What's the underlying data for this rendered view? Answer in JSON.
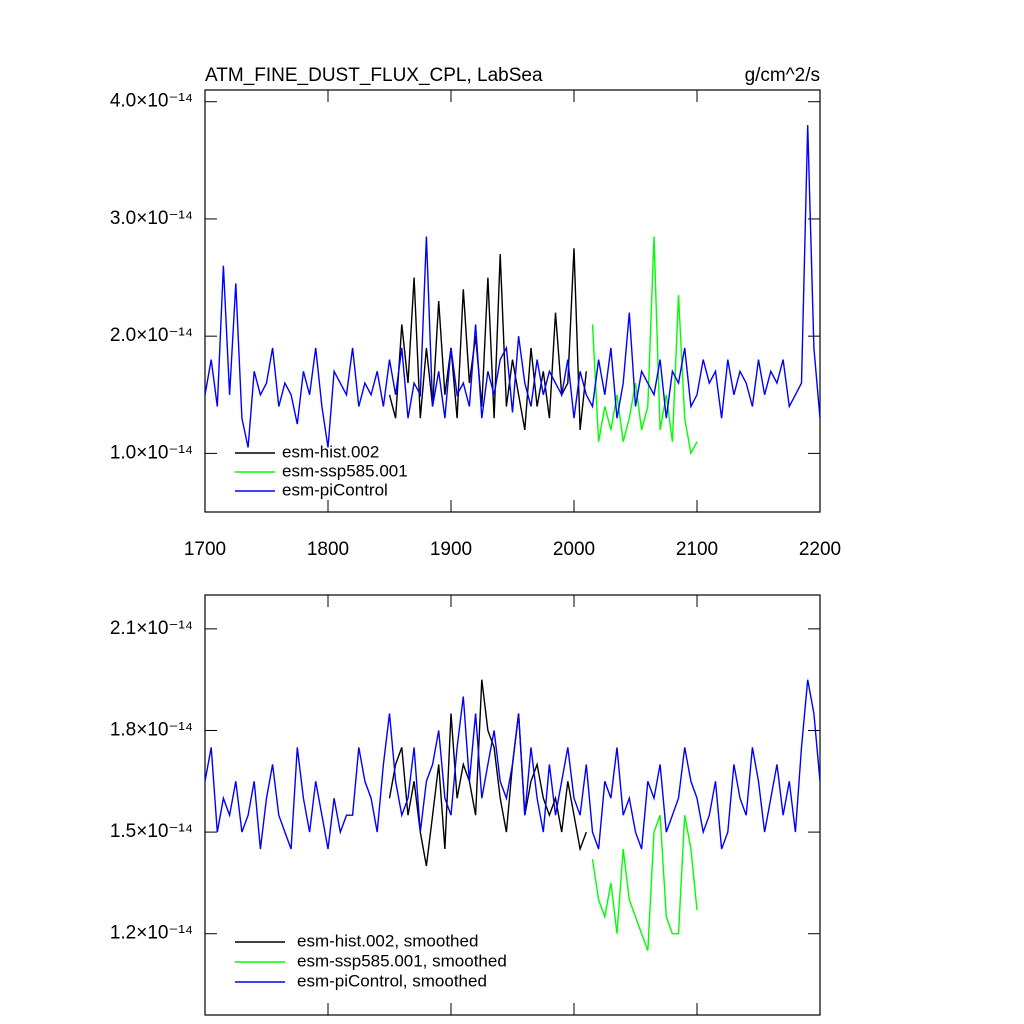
{
  "chart_data": [
    {
      "type": "line",
      "title": "ATM_FINE_DUST_FLUX_CPL, LabSea",
      "units": "g/cm^2/s",
      "xlim": [
        1700,
        2200
      ],
      "xticks": [
        1700,
        1800,
        1900,
        2000,
        2100,
        2200
      ],
      "show_xtick_labels": true,
      "ylim": [
        5e-15,
        4.1e-14
      ],
      "yticks": [
        {
          "value": 1e-14,
          "label": "1.0×10⁻¹⁴"
        },
        {
          "value": 2e-14,
          "label": "2.0×10⁻¹⁴"
        },
        {
          "value": 3e-14,
          "label": "3.0×10⁻¹⁴"
        },
        {
          "value": 4e-14,
          "label": "4.0×10⁻¹⁴"
        }
      ],
      "legend": "lower left",
      "series": [
        {
          "name": "esm-hist.002",
          "color": "#000000",
          "x": [
            1850,
            1855,
            1860,
            1865,
            1870,
            1875,
            1880,
            1885,
            1890,
            1895,
            1900,
            1905,
            1910,
            1915,
            1920,
            1925,
            1930,
            1935,
            1940,
            1945,
            1950,
            1955,
            1960,
            1965,
            1970,
            1975,
            1980,
            1985,
            1990,
            1995,
            2000,
            2005,
            2010
          ],
          "values": [
            1.5e-14,
            1.3e-14,
            2.1e-14,
            1.6e-14,
            2.5e-14,
            1.3e-14,
            1.9e-14,
            1.4e-14,
            2.3e-14,
            1.5e-14,
            1.9e-14,
            1.3e-14,
            2.4e-14,
            1.6e-14,
            2e-14,
            1.4e-14,
            2.5e-14,
            1.3e-14,
            2.7e-14,
            1.4e-14,
            1.8e-14,
            1.5e-14,
            1.2e-14,
            1.9e-14,
            1.4e-14,
            1.7e-14,
            1.3e-14,
            2.2e-14,
            1.5e-14,
            1.6e-14,
            2.75e-14,
            1.2e-14,
            1.7e-14
          ]
        },
        {
          "name": "esm-ssp585.001",
          "color": "#00ff00",
          "x": [
            2015,
            2020,
            2025,
            2030,
            2035,
            2040,
            2045,
            2050,
            2055,
            2060,
            2065,
            2070,
            2075,
            2080,
            2085,
            2090,
            2095,
            2100
          ],
          "values": [
            2.1e-14,
            1.1e-14,
            1.4e-14,
            1.2e-14,
            1.5e-14,
            1.1e-14,
            1.3e-14,
            1.6e-14,
            1.2e-14,
            1.4e-14,
            2.85e-14,
            1.2e-14,
            1.5e-14,
            1.1e-14,
            2.35e-14,
            1.3e-14,
            1e-14,
            1.1e-14
          ]
        },
        {
          "name": "esm-piControl",
          "color": "#0000ff",
          "x": [
            1700,
            1705,
            1710,
            1715,
            1720,
            1725,
            1730,
            1735,
            1740,
            1745,
            1750,
            1755,
            1760,
            1765,
            1770,
            1775,
            1780,
            1785,
            1790,
            1795,
            1800,
            1805,
            1810,
            1815,
            1820,
            1825,
            1830,
            1835,
            1840,
            1845,
            1850,
            1855,
            1860,
            1865,
            1870,
            1875,
            1880,
            1885,
            1890,
            1895,
            1900,
            1905,
            1910,
            1915,
            1920,
            1925,
            1930,
            1935,
            1940,
            1945,
            1950,
            1955,
            1960,
            1965,
            1970,
            1975,
            1980,
            1985,
            1990,
            1995,
            2000,
            2005,
            2010,
            2015,
            2020,
            2025,
            2030,
            2035,
            2040,
            2045,
            2050,
            2055,
            2060,
            2065,
            2070,
            2075,
            2080,
            2085,
            2090,
            2095,
            2100,
            2105,
            2110,
            2115,
            2120,
            2125,
            2130,
            2135,
            2140,
            2145,
            2150,
            2155,
            2160,
            2165,
            2170,
            2175,
            2180,
            2185,
            2190,
            2195,
            2200
          ],
          "values": [
            1.5e-14,
            1.8e-14,
            1.4e-14,
            2.6e-14,
            1.5e-14,
            2.45e-14,
            1.3e-14,
            1.05e-14,
            1.7e-14,
            1.5e-14,
            1.6e-14,
            1.9e-14,
            1.4e-14,
            1.6e-14,
            1.5e-14,
            1.25e-14,
            1.7e-14,
            1.5e-14,
            1.9e-14,
            1.4e-14,
            1.05e-14,
            1.7e-14,
            1.6e-14,
            1.5e-14,
            1.9e-14,
            1.4e-14,
            1.6e-14,
            1.5e-14,
            1.7e-14,
            1.4e-14,
            1.8e-14,
            1.5e-14,
            1.9e-14,
            1.3e-14,
            1.6e-14,
            1.5e-14,
            2.85e-14,
            1.4e-14,
            1.7e-14,
            1.3e-14,
            1.9e-14,
            1.5e-14,
            1.6e-14,
            1.4e-14,
            2.1e-14,
            1.3e-14,
            1.7e-14,
            1.5e-14,
            1.8e-14,
            1.9e-14,
            1.35e-14,
            2e-14,
            1.6e-14,
            1.4e-14,
            1.8e-14,
            1.5e-14,
            1.7e-14,
            1.6e-14,
            1.5e-14,
            1.8e-14,
            1.3e-14,
            1.7e-14,
            1.5e-14,
            1.4e-14,
            1.8e-14,
            1.5e-14,
            1.9e-14,
            1.3e-14,
            1.6e-14,
            2.2e-14,
            1.4e-14,
            1.7e-14,
            1.6e-14,
            1.5e-14,
            1.8e-14,
            1.3e-14,
            1.7e-14,
            1.6e-14,
            1.9e-14,
            1.4e-14,
            1.5e-14,
            1.8e-14,
            1.6e-14,
            1.7e-14,
            1.3e-14,
            1.8e-14,
            1.5e-14,
            1.7e-14,
            1.6e-14,
            1.4e-14,
            1.8e-14,
            1.5e-14,
            1.7e-14,
            1.6e-14,
            1.8e-14,
            1.4e-14,
            1.5e-14,
            1.6e-14,
            3.8e-14,
            1.9e-14,
            1.3e-14
          ]
        }
      ]
    },
    {
      "type": "line",
      "xlim": [
        1700,
        2200
      ],
      "xticks": [
        1700,
        1800,
        1900,
        2000,
        2100,
        2200
      ],
      "show_xtick_labels": false,
      "ylim": [
        9.6e-15,
        2.2e-14
      ],
      "yticks": [
        {
          "value": 1.2e-14,
          "label": "1.2×10⁻¹⁴"
        },
        {
          "value": 1.5e-14,
          "label": "1.5×10⁻¹⁴"
        },
        {
          "value": 1.8e-14,
          "label": "1.8×10⁻¹⁴"
        },
        {
          "value": 2.1e-14,
          "label": "2.1×10⁻¹⁴"
        }
      ],
      "legend": "lower left",
      "series": [
        {
          "name": "esm-hist.002, smoothed",
          "color": "#000000",
          "x": [
            1850,
            1855,
            1860,
            1865,
            1870,
            1875,
            1880,
            1885,
            1890,
            1895,
            1900,
            1905,
            1910,
            1915,
            1920,
            1925,
            1930,
            1935,
            1940,
            1945,
            1950,
            1955,
            1960,
            1965,
            1970,
            1975,
            1980,
            1985,
            1990,
            1995,
            2000,
            2005,
            2010
          ],
          "values": [
            1.6e-14,
            1.7e-14,
            1.75e-14,
            1.55e-14,
            1.65e-14,
            1.5e-14,
            1.4e-14,
            1.55e-14,
            1.7e-14,
            1.45e-14,
            1.85e-14,
            1.6e-14,
            1.7e-14,
            1.65e-14,
            1.55e-14,
            1.95e-14,
            1.8e-14,
            1.75e-14,
            1.6e-14,
            1.5e-14,
            1.7e-14,
            1.85e-14,
            1.55e-14,
            1.65e-14,
            1.7e-14,
            1.6e-14,
            1.55e-14,
            1.6e-14,
            1.5e-14,
            1.65e-14,
            1.55e-14,
            1.45e-14,
            1.5e-14
          ]
        },
        {
          "name": "esm-ssp585.001, smoothed",
          "color": "#00ff00",
          "x": [
            2015,
            2020,
            2025,
            2030,
            2035,
            2040,
            2045,
            2050,
            2055,
            2060,
            2065,
            2070,
            2075,
            2080,
            2085,
            2090,
            2095,
            2100
          ],
          "values": [
            1.42e-14,
            1.3e-14,
            1.25e-14,
            1.35e-14,
            1.2e-14,
            1.45e-14,
            1.3e-14,
            1.25e-14,
            1.2e-14,
            1.15e-14,
            1.5e-14,
            1.55e-14,
            1.25e-14,
            1.2e-14,
            1.2e-14,
            1.55e-14,
            1.45e-14,
            1.27e-14
          ]
        },
        {
          "name": "esm-piControl, smoothed",
          "color": "#0000ff",
          "x": [
            1700,
            1705,
            1710,
            1715,
            1720,
            1725,
            1730,
            1735,
            1740,
            1745,
            1750,
            1755,
            1760,
            1765,
            1770,
            1775,
            1780,
            1785,
            1790,
            1795,
            1800,
            1805,
            1810,
            1815,
            1820,
            1825,
            1830,
            1835,
            1840,
            1845,
            1850,
            1855,
            1860,
            1865,
            1870,
            1875,
            1880,
            1885,
            1890,
            1895,
            1900,
            1905,
            1910,
            1915,
            1920,
            1925,
            1930,
            1935,
            1940,
            1945,
            1950,
            1955,
            1960,
            1965,
            1970,
            1975,
            1980,
            1985,
            1990,
            1995,
            2000,
            2005,
            2010,
            2015,
            2020,
            2025,
            2030,
            2035,
            2040,
            2045,
            2050,
            2055,
            2060,
            2065,
            2070,
            2075,
            2080,
            2085,
            2090,
            2095,
            2100,
            2105,
            2110,
            2115,
            2120,
            2125,
            2130,
            2135,
            2140,
            2145,
            2150,
            2155,
            2160,
            2165,
            2170,
            2175,
            2180,
            2185,
            2190,
            2195,
            2200
          ],
          "values": [
            1.65e-14,
            1.75e-14,
            1.5e-14,
            1.6e-14,
            1.55e-14,
            1.65e-14,
            1.5e-14,
            1.55e-14,
            1.65e-14,
            1.45e-14,
            1.6e-14,
            1.7e-14,
            1.55e-14,
            1.5e-14,
            1.45e-14,
            1.75e-14,
            1.6e-14,
            1.5e-14,
            1.65e-14,
            1.55e-14,
            1.45e-14,
            1.6e-14,
            1.5e-14,
            1.55e-14,
            1.55e-14,
            1.75e-14,
            1.65e-14,
            1.6e-14,
            1.5e-14,
            1.7e-14,
            1.85e-14,
            1.65e-14,
            1.55e-14,
            1.6e-14,
            1.75e-14,
            1.5e-14,
            1.65e-14,
            1.7e-14,
            1.8e-14,
            1.6e-14,
            1.55e-14,
            1.75e-14,
            1.9e-14,
            1.65e-14,
            1.85e-14,
            1.6e-14,
            1.7e-14,
            1.8e-14,
            1.65e-14,
            1.6e-14,
            1.7e-14,
            1.85e-14,
            1.55e-14,
            1.75e-14,
            1.6e-14,
            1.5e-14,
            1.7e-14,
            1.55e-14,
            1.65e-14,
            1.75e-14,
            1.6e-14,
            1.55e-14,
            1.7e-14,
            1.5e-14,
            1.45e-14,
            1.65e-14,
            1.6e-14,
            1.75e-14,
            1.55e-14,
            1.6e-14,
            1.5e-14,
            1.45e-14,
            1.65e-14,
            1.6e-14,
            1.7e-14,
            1.5e-14,
            1.55e-14,
            1.6e-14,
            1.75e-14,
            1.65e-14,
            1.6e-14,
            1.5e-14,
            1.55e-14,
            1.65e-14,
            1.45e-14,
            1.5e-14,
            1.7e-14,
            1.6e-14,
            1.55e-14,
            1.75e-14,
            1.65e-14,
            1.5e-14,
            1.6e-14,
            1.7e-14,
            1.55e-14,
            1.65e-14,
            1.5e-14,
            1.75e-14,
            1.95e-14,
            1.85e-14,
            1.65e-14
          ]
        }
      ]
    }
  ]
}
